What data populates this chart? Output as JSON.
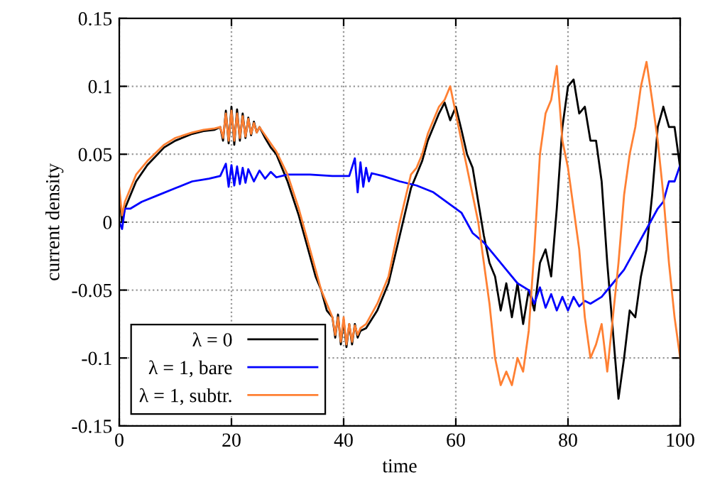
{
  "chart_data": {
    "type": "line",
    "xlabel": "time",
    "ylabel": "current density",
    "xlim": [
      0,
      100
    ],
    "ylim": [
      -0.15,
      0.15
    ],
    "xticks": [
      0,
      20,
      40,
      60,
      80,
      100
    ],
    "yticks": [
      -0.15,
      -0.1,
      -0.05,
      0,
      0.05,
      0.1,
      0.15
    ],
    "grid": true,
    "legend": "bottom left",
    "line_style": "solid",
    "marker": "none",
    "series": [
      {
        "name": "λ = 0",
        "color": "#000000",
        "x": [
          0,
          0.5,
          1,
          3,
          5,
          8,
          10,
          13,
          15,
          17,
          18,
          18.5,
          19,
          19.5,
          20,
          20.5,
          21,
          21.5,
          22,
          22.5,
          23,
          23.5,
          24,
          24.5,
          25,
          26,
          27,
          28,
          30,
          32,
          34,
          35,
          36,
          37,
          38,
          38.5,
          39,
          39.5,
          40,
          40.5,
          41,
          41.5,
          42,
          42.5,
          43,
          44,
          46,
          48,
          50,
          52,
          53,
          54,
          55,
          56,
          57,
          58,
          59,
          60,
          61,
          62,
          63,
          64,
          65,
          66,
          67,
          68,
          69,
          70,
          71,
          72,
          73,
          74,
          75,
          76,
          77,
          78,
          79,
          80,
          81,
          82,
          83,
          84,
          85,
          86,
          87,
          88,
          89,
          90,
          91,
          92,
          93,
          94,
          95,
          96,
          97,
          98,
          99,
          100
        ],
        "values": [
          0.02,
          0.0,
          0.01,
          0.03,
          0.042,
          0.055,
          0.06,
          0.065,
          0.067,
          0.068,
          0.07,
          0.06,
          0.082,
          0.058,
          0.085,
          0.057,
          0.083,
          0.06,
          0.08,
          0.062,
          0.077,
          0.064,
          0.074,
          0.066,
          0.07,
          0.062,
          0.055,
          0.05,
          0.03,
          0.005,
          -0.025,
          -0.04,
          -0.05,
          -0.065,
          -0.07,
          -0.085,
          -0.068,
          -0.09,
          -0.072,
          -0.092,
          -0.075,
          -0.09,
          -0.075,
          -0.085,
          -0.08,
          -0.078,
          -0.065,
          -0.045,
          -0.01,
          0.025,
          0.035,
          0.045,
          0.06,
          0.07,
          0.08,
          0.088,
          0.075,
          0.085,
          0.068,
          0.05,
          0.04,
          0.015,
          -0.01,
          -0.03,
          -0.04,
          -0.065,
          -0.045,
          -0.07,
          -0.045,
          -0.075,
          -0.05,
          -0.065,
          -0.03,
          -0.02,
          -0.04,
          0.01,
          0.07,
          0.1,
          0.105,
          0.08,
          0.085,
          0.06,
          0.06,
          0.03,
          -0.03,
          -0.08,
          -0.13,
          -0.1,
          -0.065,
          -0.07,
          -0.04,
          -0.02,
          0.02,
          0.07,
          0.085,
          0.07,
          0.07,
          0.04
        ]
      },
      {
        "name": "λ = 1, bare",
        "color": "#0000ff",
        "x": [
          0,
          0.5,
          1,
          2,
          4,
          7,
          10,
          13,
          16,
          18,
          19,
          19.5,
          20,
          20.5,
          21,
          21.5,
          22,
          22.5,
          23,
          24,
          25,
          26,
          27,
          28,
          30,
          34,
          38,
          41,
          42,
          42.5,
          43,
          43.5,
          44,
          44.5,
          45,
          47,
          50,
          53,
          56,
          59,
          61,
          63,
          65,
          67,
          69,
          71,
          73,
          74,
          75,
          76,
          77,
          78,
          79,
          80,
          81,
          82,
          83,
          84,
          86,
          88,
          90,
          92,
          94,
          96,
          97,
          98,
          99,
          100
        ],
        "values": [
          0.0,
          -0.005,
          0.01,
          0.01,
          0.015,
          0.02,
          0.025,
          0.03,
          0.032,
          0.034,
          0.043,
          0.026,
          0.042,
          0.027,
          0.041,
          0.028,
          0.04,
          0.029,
          0.039,
          0.03,
          0.038,
          0.032,
          0.037,
          0.033,
          0.035,
          0.035,
          0.034,
          0.034,
          0.047,
          0.022,
          0.044,
          0.026,
          0.04,
          0.03,
          0.036,
          0.034,
          0.03,
          0.027,
          0.022,
          0.013,
          0.007,
          -0.008,
          -0.015,
          -0.025,
          -0.035,
          -0.045,
          -0.05,
          -0.06,
          -0.048,
          -0.063,
          -0.053,
          -0.065,
          -0.055,
          -0.065,
          -0.055,
          -0.062,
          -0.058,
          -0.06,
          -0.055,
          -0.045,
          -0.035,
          -0.02,
          -0.005,
          0.01,
          0.015,
          0.03,
          0.03,
          0.042
        ]
      },
      {
        "name": "λ = 1, subtr.",
        "color": "#ff8033",
        "x": [
          0,
          0.5,
          1,
          3,
          5,
          8,
          10,
          13,
          15,
          17,
          18,
          18.5,
          19,
          19.5,
          20,
          20.5,
          21,
          21.5,
          22,
          22.5,
          23,
          23.5,
          24,
          24.5,
          25,
          26,
          27,
          28,
          30,
          32,
          34,
          35,
          36,
          37,
          38,
          38.5,
          39,
          39.5,
          40,
          40.5,
          41,
          41.5,
          42,
          42.5,
          43,
          44,
          46,
          48,
          50,
          52,
          53,
          54,
          55,
          56,
          57,
          58,
          59,
          60,
          61,
          62,
          63,
          64,
          65,
          66,
          67,
          68,
          69,
          70,
          71,
          72,
          73,
          74,
          75,
          76,
          77,
          78,
          79,
          80,
          81,
          82,
          83,
          84,
          85,
          86,
          87,
          88,
          89,
          90,
          91,
          92,
          93,
          94,
          95,
          96,
          97,
          98,
          99,
          100
        ],
        "values": [
          0.025,
          0.005,
          0.015,
          0.035,
          0.045,
          0.057,
          0.062,
          0.066,
          0.068,
          0.069,
          0.07,
          0.062,
          0.08,
          0.06,
          0.082,
          0.06,
          0.08,
          0.062,
          0.078,
          0.063,
          0.076,
          0.065,
          0.073,
          0.066,
          0.07,
          0.064,
          0.058,
          0.052,
          0.035,
          0.01,
          -0.02,
          -0.035,
          -0.05,
          -0.06,
          -0.07,
          -0.083,
          -0.07,
          -0.088,
          -0.07,
          -0.09,
          -0.075,
          -0.088,
          -0.076,
          -0.083,
          -0.078,
          -0.075,
          -0.06,
          -0.04,
          0.0,
          0.035,
          0.04,
          0.05,
          0.065,
          0.075,
          0.085,
          0.09,
          0.1,
          0.08,
          0.06,
          0.04,
          0.02,
          0.0,
          -0.03,
          -0.06,
          -0.1,
          -0.12,
          -0.11,
          -0.12,
          -0.1,
          -0.11,
          -0.08,
          -0.02,
          0.05,
          0.08,
          0.09,
          0.115,
          0.06,
          0.04,
          0.01,
          -0.02,
          -0.07,
          -0.1,
          -0.09,
          -0.075,
          -0.11,
          -0.07,
          -0.03,
          0.02,
          0.05,
          0.07,
          0.1,
          0.118,
          0.09,
          0.06,
          0.02,
          -0.03,
          -0.07,
          -0.1
        ]
      }
    ]
  }
}
